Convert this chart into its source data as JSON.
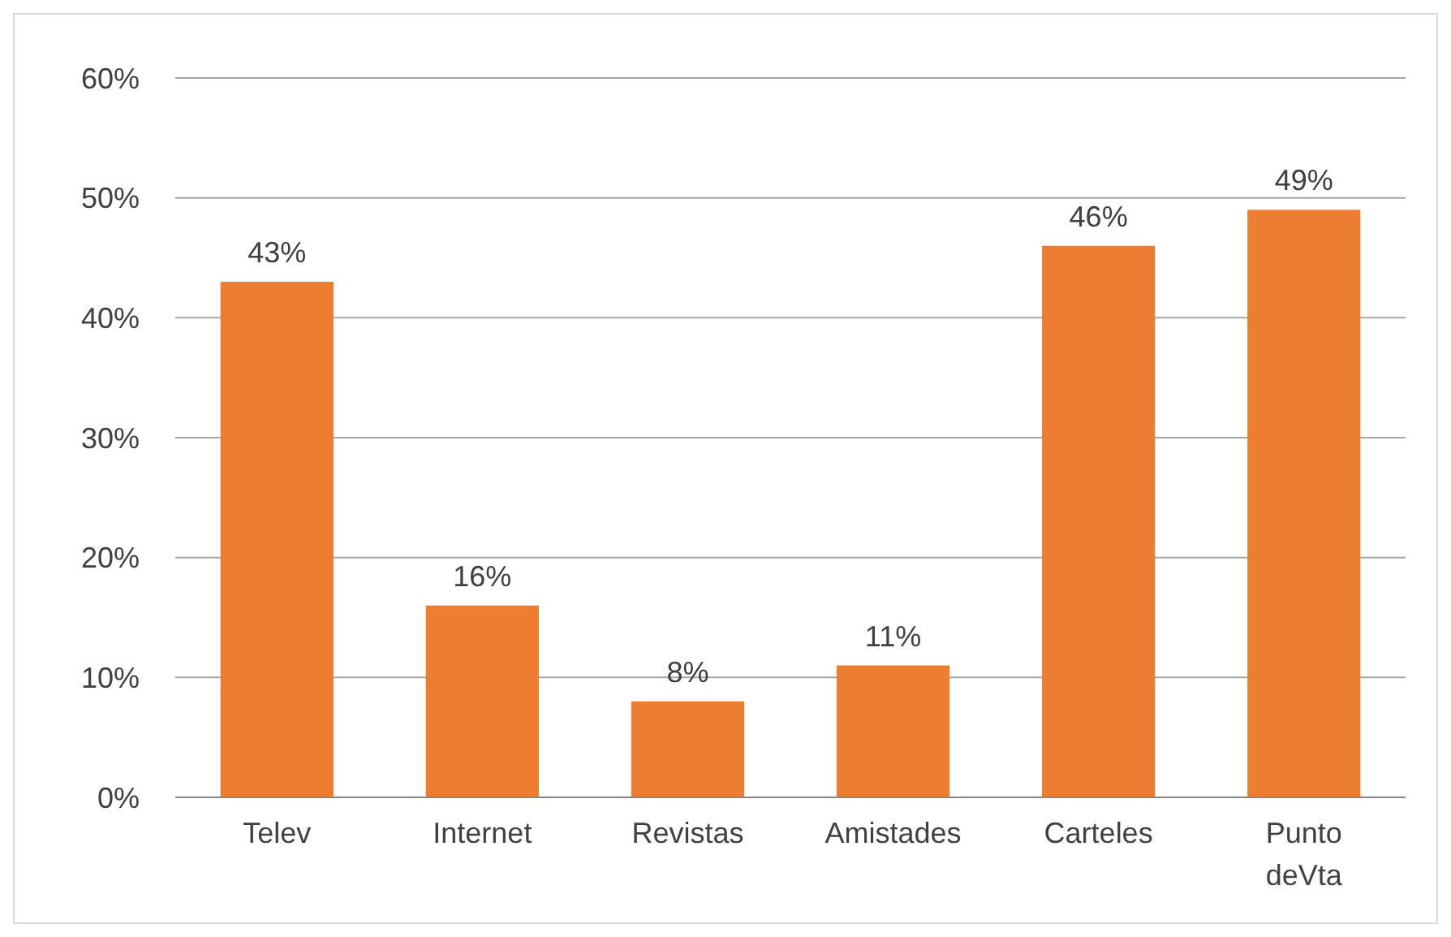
{
  "chart_data": {
    "type": "bar",
    "categories": [
      "Telev",
      "Internet",
      "Revistas",
      "Amistades",
      "Carteles",
      "Punto deVta"
    ],
    "values": [
      43,
      16,
      8,
      11,
      46,
      49
    ],
    "color": "#ed7d31",
    "value_labels": [
      "43%",
      "16%",
      "8%",
      "11%",
      "46%",
      "49%"
    ],
    "ylim": [
      0,
      60
    ],
    "yticks": [
      {
        "value": 0,
        "label": "0%"
      },
      {
        "value": 10,
        "label": "10%"
      },
      {
        "value": 20,
        "label": "20%"
      },
      {
        "value": 30,
        "label": "30%"
      },
      {
        "value": 40,
        "label": "40%"
      },
      {
        "value": 50,
        "label": "50%"
      },
      {
        "value": 60,
        "label": "60%"
      }
    ],
    "grid": "y"
  }
}
